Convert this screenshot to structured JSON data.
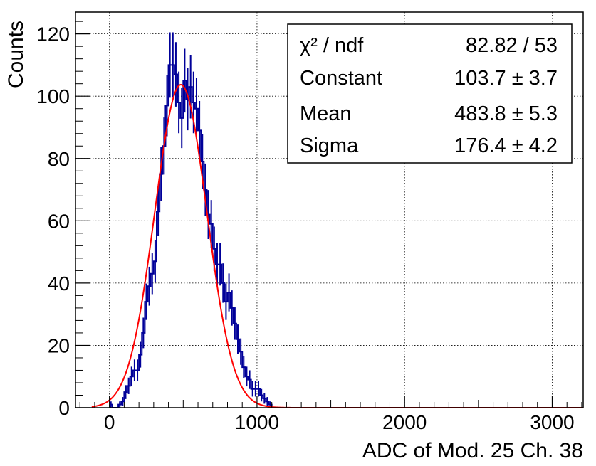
{
  "chart_data": {
    "type": "histogram",
    "xlabel": "ADC of Mod. 25 Ch. 38",
    "ylabel": "Counts",
    "xlim": [
      -230,
      3210
    ],
    "ylim": [
      0,
      127
    ],
    "x_ticks": [
      0,
      1000,
      2000,
      3000
    ],
    "x_tick_labels": [
      "0",
      "1000",
      "2000",
      "3000"
    ],
    "y_ticks": [
      0,
      20,
      40,
      60,
      80,
      100,
      120
    ],
    "y_tick_labels": [
      "0",
      "20",
      "40",
      "60",
      "80",
      "100",
      "120"
    ],
    "grid": true,
    "bin_start": 0,
    "bin_width": 20,
    "counts": [
      1,
      0,
      0,
      1,
      2,
      5,
      7,
      10,
      12,
      12,
      17,
      24,
      34,
      39,
      43,
      47,
      63,
      75,
      84,
      97,
      110,
      110,
      107,
      98,
      93,
      105,
      99,
      103,
      98,
      96,
      89,
      79,
      70,
      62,
      59,
      51,
      46,
      46,
      40,
      34,
      37,
      32,
      27,
      22,
      18,
      13,
      10,
      9,
      6,
      6,
      6,
      4,
      3,
      2,
      1,
      0,
      0,
      0,
      0,
      0,
      0,
      0,
      0,
      0,
      0,
      0,
      0,
      0,
      0,
      0,
      0,
      0,
      0,
      0,
      0,
      0,
      0,
      0,
      0,
      0,
      0,
      0,
      0,
      0,
      0,
      0,
      0,
      0,
      0,
      0,
      0,
      0,
      0,
      0,
      0,
      0,
      0,
      0,
      0,
      0,
      0,
      0,
      0,
      0,
      0,
      0,
      0,
      0,
      0,
      0,
      0,
      0,
      0,
      0,
      0,
      0,
      0,
      0,
      0,
      0,
      0,
      0,
      0,
      0,
      0,
      0,
      0,
      0,
      0,
      0,
      0,
      0,
      0,
      0,
      0,
      0,
      0,
      0,
      0,
      0,
      0,
      0,
      0,
      0,
      0,
      0,
      0,
      0,
      0,
      0,
      0,
      0,
      0,
      0,
      0,
      0,
      0,
      0,
      0,
      0
    ],
    "fit": {
      "function": "gaus",
      "constant": 103.7,
      "mean": 483.8,
      "sigma": 176.4,
      "color": "#ff0000"
    },
    "hist_color": "#000099",
    "stats_box": {
      "rows": [
        {
          "label": "χ² / ndf",
          "value": "82.82 / 53"
        },
        {
          "label": "Constant",
          "value": "103.7 ± 3.7"
        },
        {
          "label": "Mean",
          "value": "483.8 ± 5.3"
        },
        {
          "label": "Sigma",
          "value": "176.4 ± 4.2"
        }
      ]
    }
  }
}
